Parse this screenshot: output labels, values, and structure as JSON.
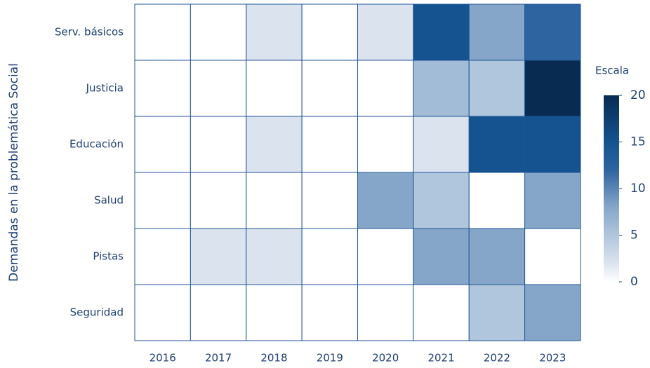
{
  "chart_data": {
    "type": "heatmap",
    "y_label": "Demandas en la problemática Social",
    "x": [
      "2016",
      "2017",
      "2018",
      "2019",
      "2020",
      "2021",
      "2022",
      "2023"
    ],
    "y": [
      "Serv. básicos",
      "Justicia",
      "Educación",
      "Salud",
      "Pistas",
      "Seguridad"
    ],
    "z": [
      [
        0,
        0,
        2,
        0,
        2,
        15,
        8,
        12
      ],
      [
        0,
        0,
        0,
        0,
        0,
        6,
        5,
        20
      ],
      [
        0,
        0,
        2,
        0,
        0,
        2,
        15,
        15
      ],
      [
        0,
        0,
        0,
        0,
        8,
        5,
        0,
        8
      ],
      [
        0,
        2,
        2,
        0,
        0,
        8,
        8,
        0
      ],
      [
        0,
        0,
        0,
        0,
        0,
        0,
        5,
        8
      ]
    ],
    "colorbar_title": "Escala",
    "zlim": [
      0,
      20
    ],
    "zticks": [
      0,
      5,
      10,
      15,
      20
    ],
    "colorscale": [
      [
        0,
        "#ffffff"
      ],
      [
        0.1,
        "#dbe3ee"
      ],
      [
        0.25,
        "#b0c6dc"
      ],
      [
        0.4,
        "#86a6c9"
      ],
      [
        0.6,
        "#2e64a0"
      ],
      [
        0.75,
        "#14538f"
      ],
      [
        1,
        "#082b52"
      ]
    ],
    "cell_border": "#1f5596"
  }
}
